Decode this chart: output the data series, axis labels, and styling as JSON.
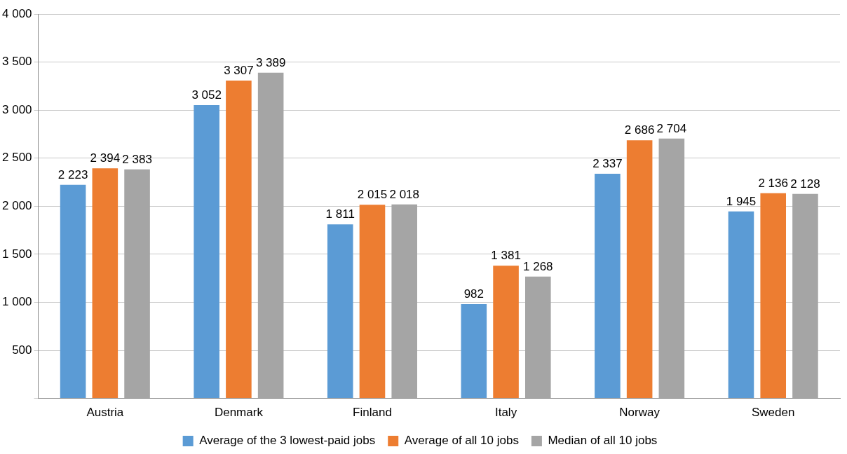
{
  "chart_data": {
    "type": "bar",
    "categories": [
      "Austria",
      "Denmark",
      "Finland",
      "Italy",
      "Norway",
      "Sweden"
    ],
    "series": [
      {
        "name": "Average of the 3 lowest-paid jobs",
        "color": "#5b9bd5",
        "values": [
          2223,
          3052,
          1811,
          982,
          2337,
          1945
        ],
        "value_labels": [
          "2 223",
          "3 052",
          "1 811",
          "982",
          "2 337",
          "1 945"
        ]
      },
      {
        "name": "Average of all 10 jobs",
        "color": "#ed7d31",
        "values": [
          2394,
          3307,
          2015,
          1381,
          2686,
          2136
        ],
        "value_labels": [
          "2 394",
          "3 307",
          "2 015",
          "1 381",
          "2 686",
          "2 136"
        ]
      },
      {
        "name": "Median of all 10 jobs",
        "color": "#a5a5a5",
        "values": [
          2383,
          3389,
          2018,
          1268,
          2704,
          2128
        ],
        "value_labels": [
          "2 383",
          "3 389",
          "2 018",
          "1 268",
          "2 704",
          "2 128"
        ]
      }
    ],
    "ylim": [
      0,
      4000
    ],
    "yticks": [
      {
        "value": 0,
        "label": null
      },
      500,
      {
        "value": 1000,
        "label": "1 000"
      },
      {
        "value": 1500,
        "label": "1 500"
      },
      {
        "value": 2000,
        "label": "2 000"
      },
      {
        "value": 2500,
        "label": "2 500"
      },
      {
        "value": 3000,
        "label": "3 000"
      },
      {
        "value": 3500,
        "label": "3 500"
      },
      {
        "value": 4000,
        "label": "4 000"
      }
    ],
    "grid": "y",
    "legend": "bottom"
  }
}
